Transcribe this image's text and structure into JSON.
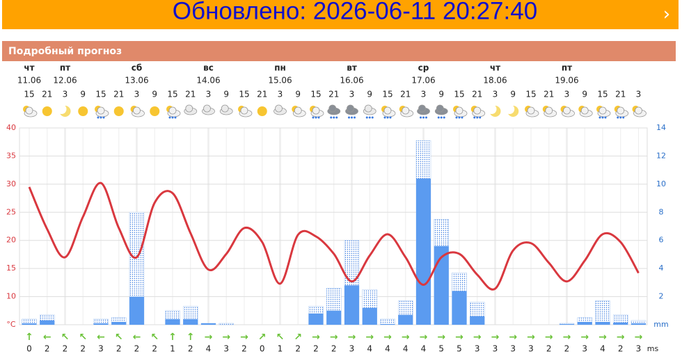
{
  "banner": {
    "text": "Обновлено: 2026-06-11 20:27:40",
    "chevron": "›"
  },
  "section": {
    "title": "Подробный прогноз"
  },
  "chart_data": {
    "type": "weather",
    "days": [
      {
        "day": "чт",
        "date": "11.06"
      },
      {
        "day": "пт",
        "date": "12.06"
      },
      {
        "day": "сб",
        "date": "13.06"
      },
      {
        "day": "вс",
        "date": "14.06"
      },
      {
        "day": "пн",
        "date": "15.06"
      },
      {
        "day": "вт",
        "date": "16.06"
      },
      {
        "day": "ср",
        "date": "17.06"
      },
      {
        "day": "чт",
        "date": "18.06"
      },
      {
        "day": "пт",
        "date": "19.06"
      }
    ],
    "hours": [
      15,
      21,
      3,
      9,
      15,
      21,
      3,
      9,
      15,
      21,
      3,
      9,
      15,
      21,
      3,
      9,
      15,
      21,
      3,
      9,
      15,
      21,
      3,
      9,
      15,
      21,
      3,
      9,
      15,
      21,
      3,
      9,
      15,
      21,
      3
    ],
    "temperature": {
      "color": "#d9383f",
      "values": [
        29.5,
        22.0,
        17.0,
        24.2,
        30.2,
        22.2,
        17.0,
        26.7,
        28.4,
        21.3,
        14.8,
        17.6,
        22.2,
        19.7,
        12.3,
        21.0,
        20.7,
        17.6,
        12.7,
        17.3,
        21.1,
        17.0,
        12.1,
        17.0,
        17.6,
        13.9,
        11.4,
        18.2,
        19.5,
        16.0,
        12.7,
        16.4,
        21.1,
        19.7,
        14.2
      ]
    },
    "precip": {
      "axis": "y2",
      "color": "#5b9bf0",
      "values": [
        0.1,
        0.3,
        0,
        0,
        0.1,
        0.2,
        2.0,
        0,
        0.4,
        0.4,
        0.1,
        0,
        0,
        0,
        0,
        0,
        0.8,
        1.0,
        2.8,
        1.2,
        0.05,
        0.7,
        10.4,
        5.6,
        2.4,
        0.6,
        0,
        0,
        0,
        0,
        0.05,
        0.2,
        0.2,
        0.15,
        0.1
      ]
    },
    "precip_max": {
      "axis": "y2",
      "color": "#3b7be0",
      "values": [
        0.4,
        0.7,
        0,
        0,
        0.4,
        0.5,
        8.0,
        0,
        1.0,
        1.3,
        0.1,
        0.1,
        0,
        0,
        0,
        0,
        1.3,
        2.6,
        6.0,
        2.5,
        0.4,
        1.7,
        13.1,
        7.5,
        3.7,
        1.6,
        0,
        0,
        0,
        0,
        0.1,
        0.5,
        1.7,
        0.7,
        0.3
      ]
    },
    "ylim": [
      5,
      40
    ],
    "yticks": [
      {
        "value": 5,
        "label": "°C"
      },
      10,
      15,
      20,
      25,
      30,
      35,
      40
    ],
    "y2lim": [
      0,
      14
    ],
    "y2ticks": [
      {
        "value": 0,
        "label": "mm"
      },
      2,
      4,
      6,
      8,
      10,
      12,
      14
    ],
    "wind_dir": [
      "↑",
      "←",
      "↖",
      "↖",
      "←",
      "↖",
      "←",
      "↖",
      "↑",
      "↑",
      "→",
      "→",
      "→",
      "↗",
      "↖",
      "↗",
      "→",
      "→",
      "→",
      "→",
      "→",
      "→",
      "→",
      "→",
      "→",
      "→",
      "→",
      "→",
      "→",
      "→",
      "→",
      "→",
      "→",
      "→",
      "→"
    ],
    "wind_speed": [
      0,
      2,
      2,
      2,
      3,
      2,
      2,
      2,
      1,
      2,
      4,
      3,
      2,
      0,
      1,
      2,
      2,
      2,
      3,
      4,
      4,
      4,
      4,
      5,
      5,
      3,
      3,
      3,
      3,
      2,
      2,
      3,
      4,
      2,
      3
    ],
    "wind_unit": "ms",
    "grid": true
  }
}
